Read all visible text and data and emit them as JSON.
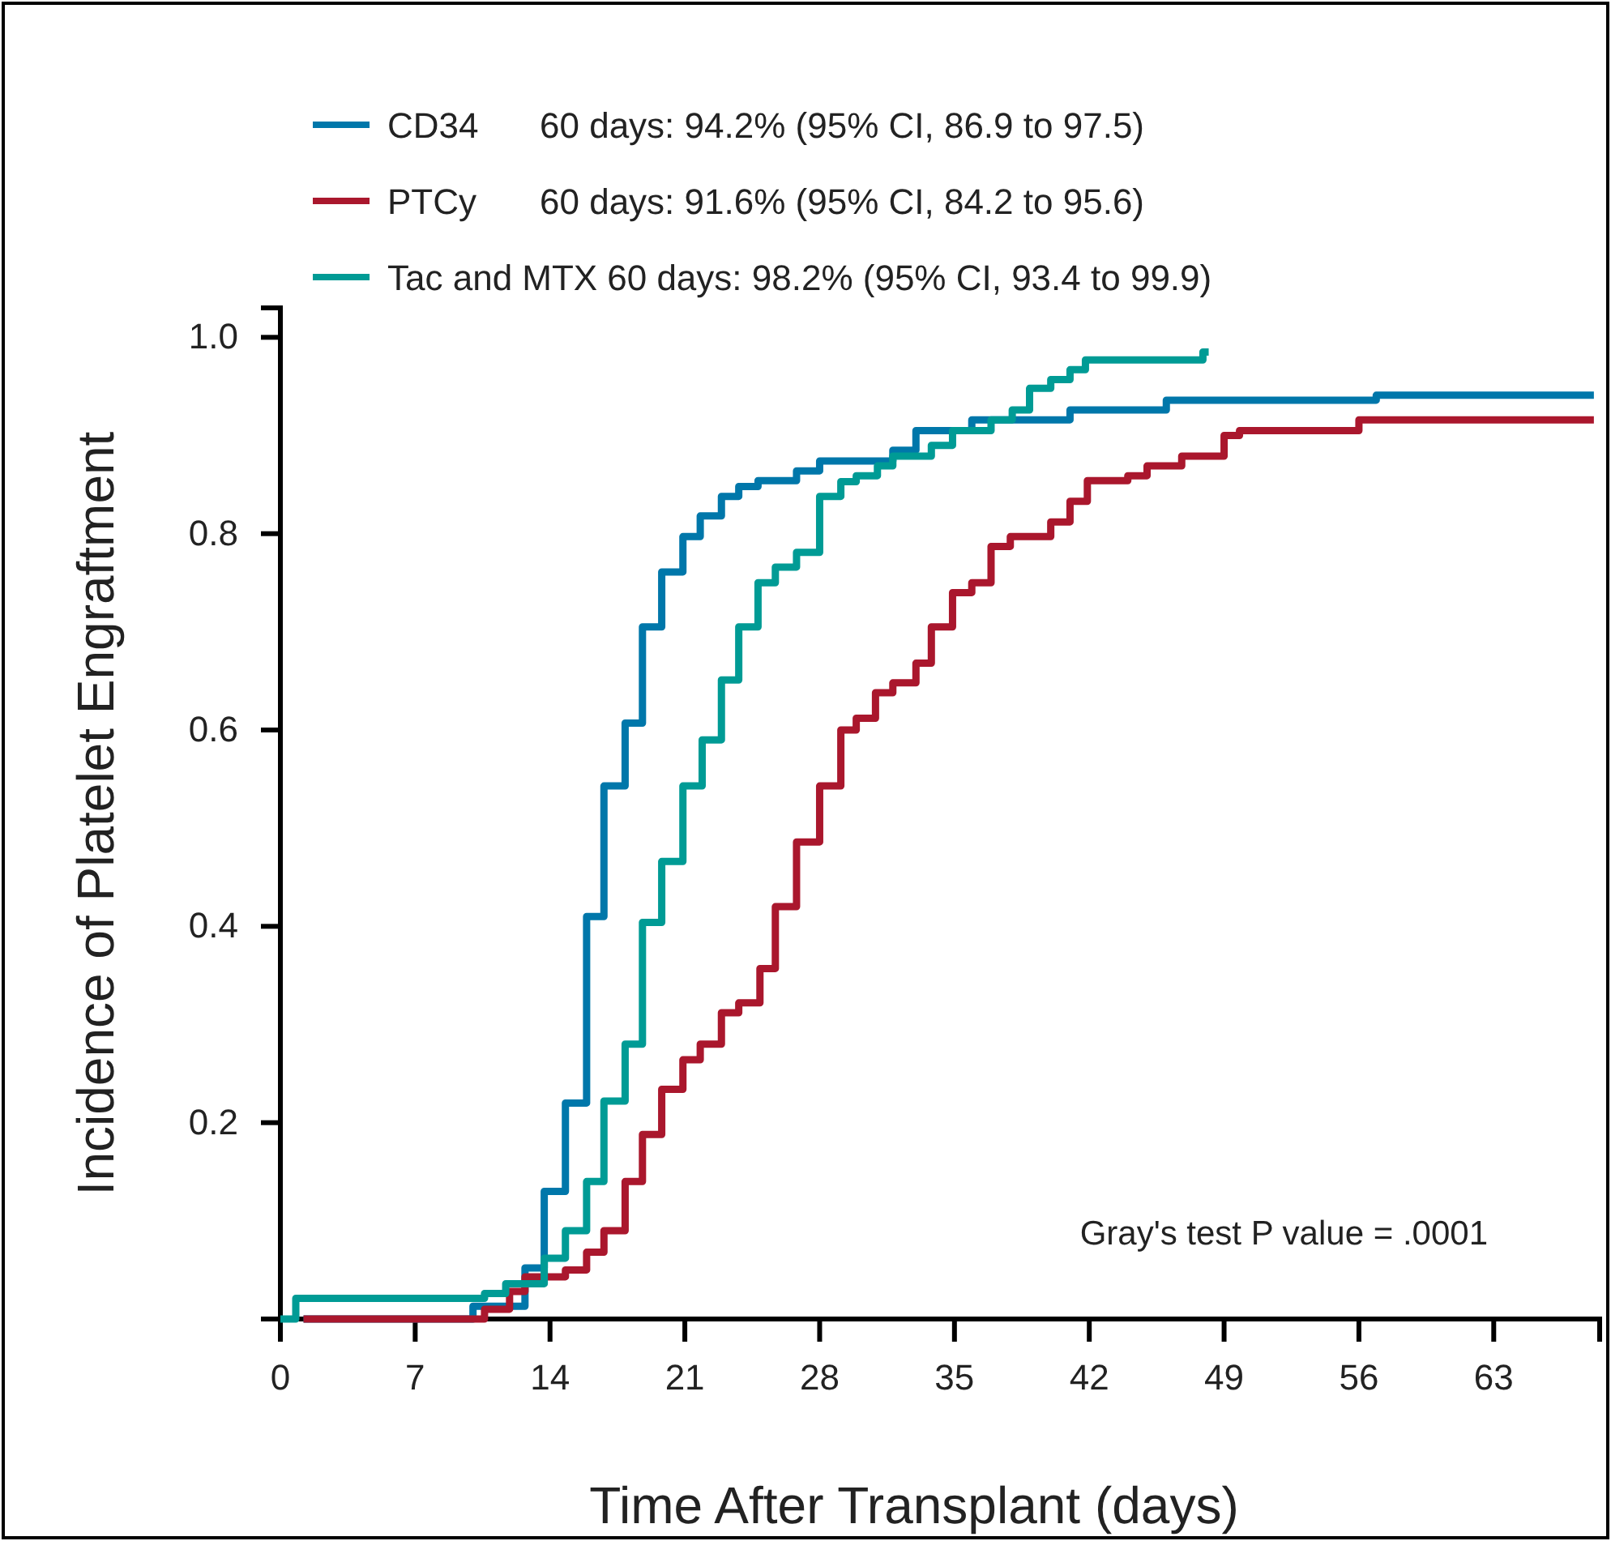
{
  "chart_data": {
    "type": "step",
    "xlabel": "Time After Transplant (days)",
    "ylabel": "Incidence of Platelet Engraftment",
    "xlim": [
      0,
      68.5
    ],
    "ylim": [
      0,
      1.03
    ],
    "xticks": [
      0,
      7,
      14,
      21,
      28,
      35,
      42,
      49,
      56,
      63
    ],
    "yticks": [
      0.2,
      0.4,
      0.6,
      0.8,
      {
        "value": 1,
        "label": "1.0"
      }
    ],
    "legend": "top left",
    "grid": false,
    "marker": "none",
    "line_style": "solid",
    "annotations": [
      "60 days: 94.2% (95% CI, 86.9 to 97.5)",
      "60 days: 91.6% (95% CI, 84.2 to 95.6)",
      "60 days: 98.2% (95% CI, 93.4 to 99.9)",
      "Gray's test P value =  .0001"
    ],
    "series": [
      {
        "name": "CD34",
        "color": "#0077aa",
        "x": [
          1.2,
          10,
          12.7,
          13.7,
          14.8,
          15.9,
          16.8,
          17.9,
          18.8,
          19.8,
          20.9,
          21.8,
          22.9,
          23.8,
          24.8,
          26.8,
          28,
          31.8,
          33,
          35.9,
          41,
          46,
          56.9,
          68.2
        ],
        "values": [
          0,
          0.013,
          0.052,
          0.13,
          0.22,
          0.41,
          0.543,
          0.607,
          0.705,
          0.761,
          0.797,
          0.818,
          0.838,
          0.848,
          0.854,
          0.864,
          0.874,
          0.885,
          0.905,
          0.916,
          0.926,
          0.936,
          0.941,
          0.941
        ]
      },
      {
        "name": "PTCy",
        "color": "#aa172d",
        "x": [
          1.2,
          10.6,
          11.9,
          12.7,
          14.8,
          15.9,
          16.8,
          17.9,
          18.8,
          19.8,
          20.9,
          21.8,
          22.9,
          23.8,
          24.9,
          25.7,
          26.8,
          28,
          29.1,
          29.9,
          30.9,
          31.8,
          33,
          33.8,
          34.9,
          35.9,
          36.9,
          37.9,
          40,
          41,
          41.9,
          44,
          45,
          46.8,
          49,
          49.8,
          56,
          68.2
        ],
        "values": [
          0,
          0.01,
          0.028,
          0.043,
          0.05,
          0.068,
          0.09,
          0.14,
          0.188,
          0.234,
          0.264,
          0.28,
          0.312,
          0.322,
          0.357,
          0.42,
          0.486,
          0.543,
          0.6,
          0.612,
          0.638,
          0.648,
          0.668,
          0.705,
          0.74,
          0.75,
          0.787,
          0.797,
          0.812,
          0.833,
          0.854,
          0.859,
          0.869,
          0.879,
          0.9,
          0.905,
          0.916,
          0.916
        ]
      },
      {
        "name": "Tac and MTX",
        "color": "#009b95",
        "x": [
          0,
          0.8,
          10.6,
          11.7,
          13.7,
          14.8,
          15.9,
          16.8,
          17.9,
          18.8,
          19.8,
          20.9,
          21.9,
          22.9,
          23.8,
          24.8,
          25.7,
          26.8,
          28,
          29.1,
          29.9,
          31,
          31.8,
          33.8,
          34.9,
          36.9,
          38,
          38.9,
          40,
          41,
          41.8,
          47.9,
          48.2
        ],
        "values": [
          0,
          0.021,
          0.026,
          0.036,
          0.062,
          0.09,
          0.14,
          0.222,
          0.28,
          0.404,
          0.466,
          0.543,
          0.59,
          0.651,
          0.705,
          0.75,
          0.766,
          0.781,
          0.838,
          0.853,
          0.859,
          0.869,
          0.879,
          0.89,
          0.905,
          0.916,
          0.926,
          0.948,
          0.957,
          0.967,
          0.977,
          0.985,
          0.985
        ]
      }
    ]
  }
}
